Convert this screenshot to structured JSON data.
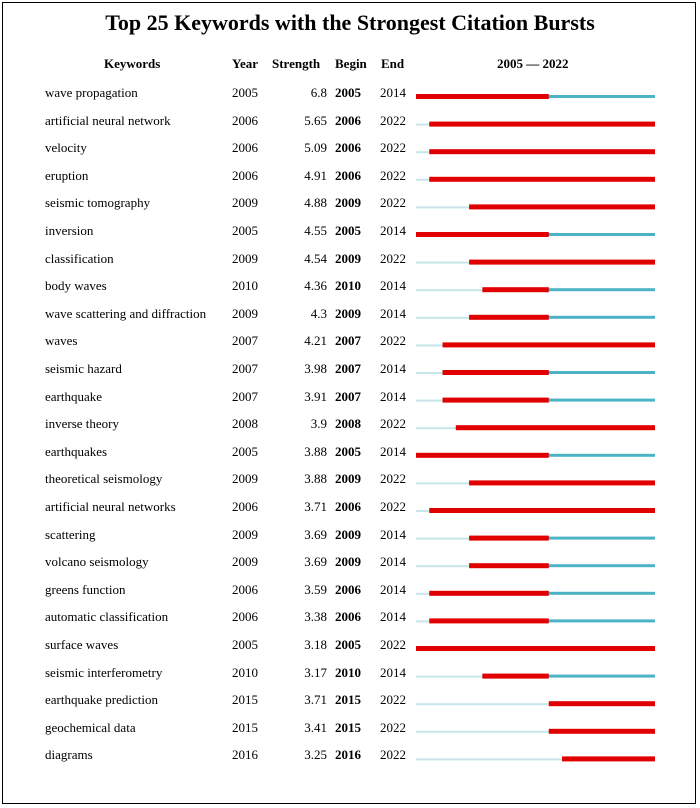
{
  "chart_data": {
    "type": "table",
    "title": "Top 25 Keywords with the Strongest Citation Bursts",
    "columns": [
      "Keywords",
      "Year",
      "Strength",
      "Begin",
      "End"
    ],
    "timeline_label": "2005 — 2022",
    "timeline_range": [
      2005,
      2022
    ],
    "colors": {
      "burst": "#e00000",
      "active": "#4bb3c4",
      "before": "#c8e6ea"
    },
    "rows": [
      {
        "keyword": "wave propagation",
        "year": "2005",
        "strength": "6.8",
        "begin": "2005",
        "end": "2014"
      },
      {
        "keyword": "artificial neural network",
        "year": "2006",
        "strength": "5.65",
        "begin": "2006",
        "end": "2022"
      },
      {
        "keyword": "velocity",
        "year": "2006",
        "strength": "5.09",
        "begin": "2006",
        "end": "2022"
      },
      {
        "keyword": "eruption",
        "year": "2006",
        "strength": "4.91",
        "begin": "2006",
        "end": "2022"
      },
      {
        "keyword": "seismic tomography",
        "year": "2009",
        "strength": "4.88",
        "begin": "2009",
        "end": "2022"
      },
      {
        "keyword": "inversion",
        "year": "2005",
        "strength": "4.55",
        "begin": "2005",
        "end": "2014"
      },
      {
        "keyword": "classification",
        "year": "2009",
        "strength": "4.54",
        "begin": "2009",
        "end": "2022"
      },
      {
        "keyword": "body waves",
        "year": "2010",
        "strength": "4.36",
        "begin": "2010",
        "end": "2014"
      },
      {
        "keyword": "wave scattering and diffraction",
        "year": "2009",
        "strength": "4.3",
        "begin": "2009",
        "end": "2014"
      },
      {
        "keyword": "waves",
        "year": "2007",
        "strength": "4.21",
        "begin": "2007",
        "end": "2022"
      },
      {
        "keyword": "seismic hazard",
        "year": "2007",
        "strength": "3.98",
        "begin": "2007",
        "end": "2014"
      },
      {
        "keyword": "earthquake",
        "year": "2007",
        "strength": "3.91",
        "begin": "2007",
        "end": "2014"
      },
      {
        "keyword": "inverse theory",
        "year": "2008",
        "strength": "3.9",
        "begin": "2008",
        "end": "2022"
      },
      {
        "keyword": "earthquakes",
        "year": "2005",
        "strength": "3.88",
        "begin": "2005",
        "end": "2014"
      },
      {
        "keyword": "theoretical seismology",
        "year": "2009",
        "strength": "3.88",
        "begin": "2009",
        "end": "2022"
      },
      {
        "keyword": "artificial neural networks",
        "year": "2006",
        "strength": "3.71",
        "begin": "2006",
        "end": "2022"
      },
      {
        "keyword": "scattering",
        "year": "2009",
        "strength": "3.69",
        "begin": "2009",
        "end": "2014"
      },
      {
        "keyword": "volcano seismology",
        "year": "2009",
        "strength": "3.69",
        "begin": "2009",
        "end": "2014"
      },
      {
        "keyword": "greens function",
        "year": "2006",
        "strength": "3.59",
        "begin": "2006",
        "end": "2014"
      },
      {
        "keyword": "automatic classification",
        "year": "2006",
        "strength": "3.38",
        "begin": "2006",
        "end": "2014"
      },
      {
        "keyword": "surface waves",
        "year": "2005",
        "strength": "3.18",
        "begin": "2005",
        "end": "2022"
      },
      {
        "keyword": "seismic interferometry",
        "year": "2010",
        "strength": "3.17",
        "begin": "2010",
        "end": "2014"
      },
      {
        "keyword": "earthquake prediction",
        "year": "2015",
        "strength": "3.71",
        "begin": "2015",
        "end": "2022"
      },
      {
        "keyword": "geochemical data",
        "year": "2015",
        "strength": "3.41",
        "begin": "2015",
        "end": "2022"
      },
      {
        "keyword": "diagrams",
        "year": "2016",
        "strength": "3.25",
        "begin": "2016",
        "end": "2022"
      }
    ]
  }
}
